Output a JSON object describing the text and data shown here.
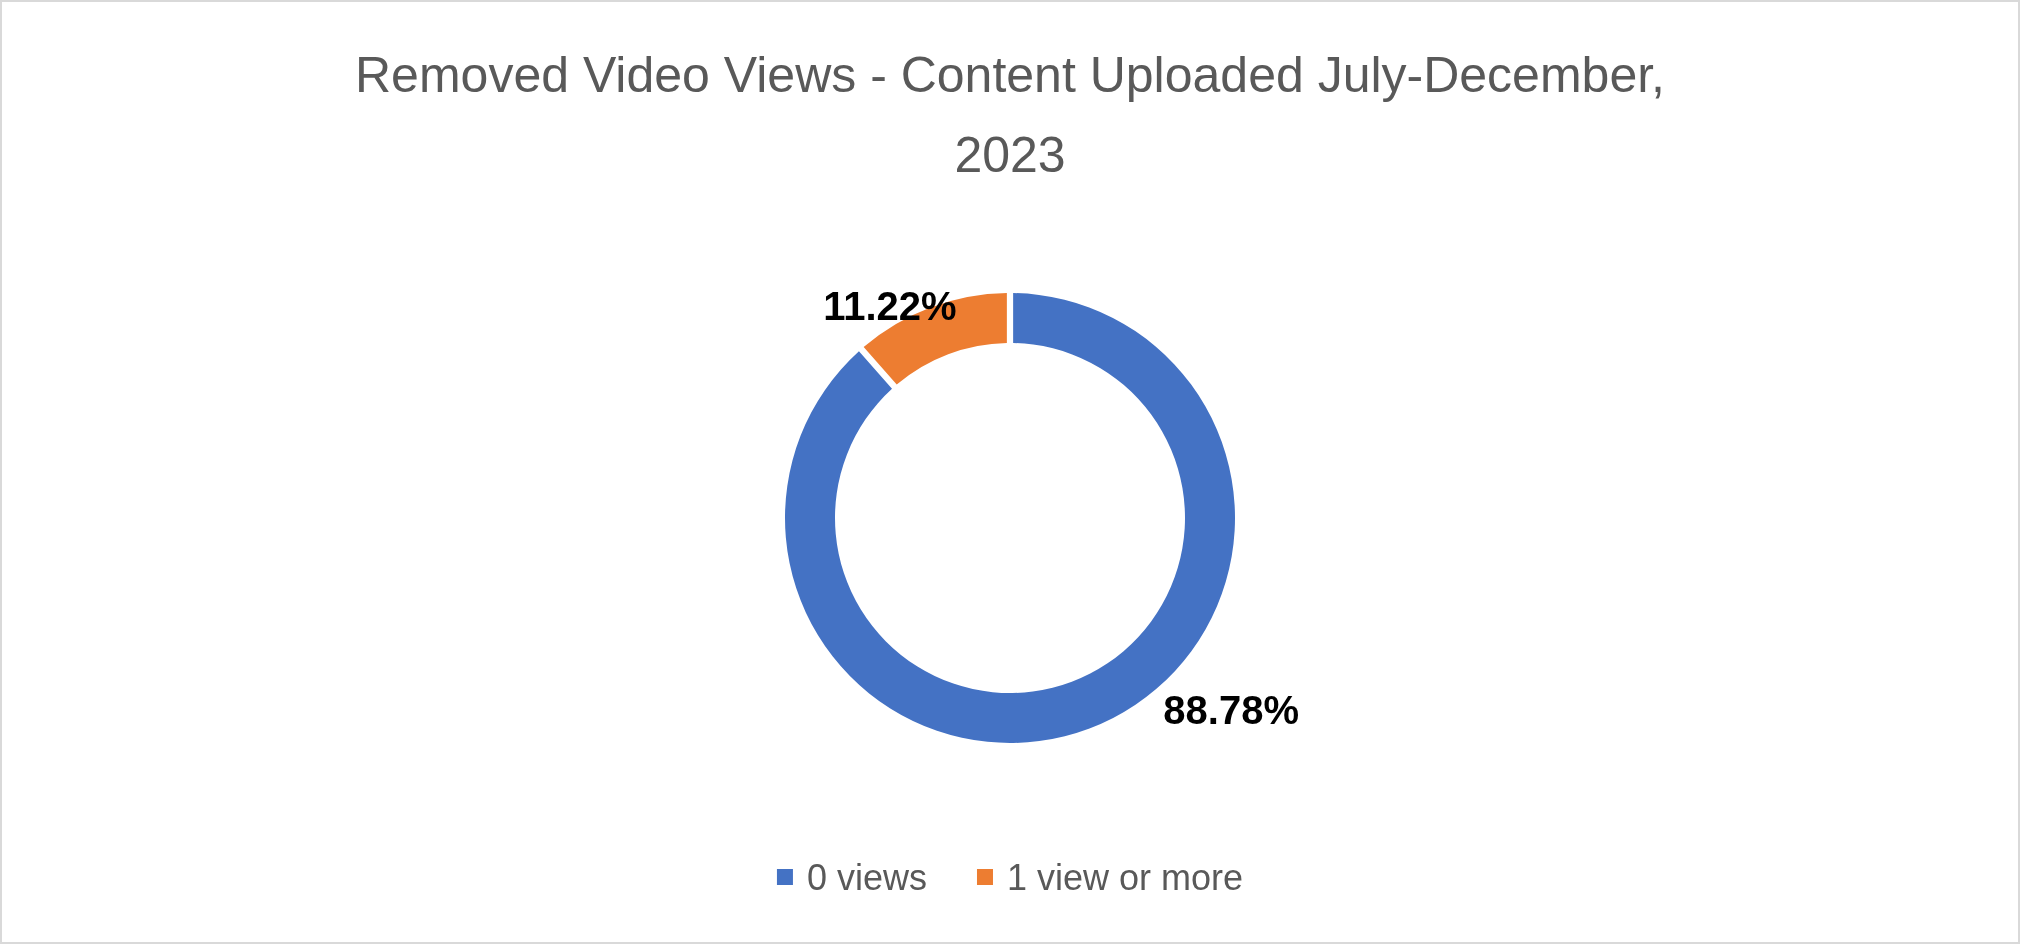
{
  "chart_data": {
    "type": "donut",
    "title": "Removed Video Views - Content Uploaded July-December, 2023",
    "categories": [
      "0 views",
      "1 view or more"
    ],
    "values": [
      88.78,
      11.22
    ],
    "colors": [
      "#4472c4",
      "#ed7d31"
    ],
    "value_labels": [
      "88.78%",
      "11.22%"
    ],
    "legend": "bottom"
  }
}
